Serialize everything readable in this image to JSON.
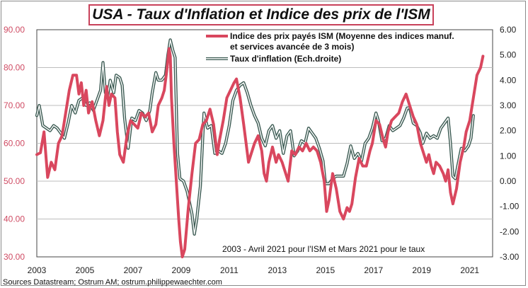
{
  "title": "USA - Taux d'Inflation et Indice des prix de l'ISM",
  "chart_data": {
    "type": "line",
    "title": "USA - Taux d'Inflation et Indice des prix de l'ISM",
    "x_range": [
      2003,
      2021.95
    ],
    "x_ticks": [
      "2003",
      "2005",
      "2007",
      "2009",
      "2011",
      "2013",
      "2015",
      "2017",
      "2019",
      "2021"
    ],
    "x_tick_values": [
      2003,
      2005,
      2007,
      2009,
      2011,
      2013,
      2015,
      2017,
      2019,
      2021
    ],
    "y_left": {
      "range": [
        30,
        90
      ],
      "ticks": [
        "30.00",
        "40.00",
        "50.00",
        "60.00",
        "70.00",
        "80.00",
        "90.00"
      ],
      "tick_values": [
        30,
        40,
        50,
        60,
        70,
        80,
        90
      ]
    },
    "y_right": {
      "range": [
        -3,
        6
      ],
      "ticks": [
        "-3.00",
        "-2.00",
        "-1.00",
        "0.00",
        "1.00",
        "2.00",
        "3.00",
        "4.00",
        "5.00",
        "6.00"
      ],
      "tick_values": [
        -3,
        -2,
        -1,
        0,
        1,
        2,
        3,
        4,
        5,
        6
      ]
    },
    "series": [
      {
        "name": "Indice des prix payés ISM (Moyenne des indices manuf. et services avancée de 3 mois)",
        "legend_lines": [
          "Indice des prix payés ISM (Moyenne des indices manuf.",
          "et services avancée de 3 mois)"
        ],
        "axis": "left",
        "color": "#d9475e",
        "points": [
          [
            2003.0,
            57
          ],
          [
            2003.15,
            57.5
          ],
          [
            2003.3,
            63
          ],
          [
            2003.45,
            51
          ],
          [
            2003.6,
            55
          ],
          [
            2003.75,
            53
          ],
          [
            2003.9,
            60
          ],
          [
            2004.05,
            62
          ],
          [
            2004.2,
            68
          ],
          [
            2004.35,
            74
          ],
          [
            2004.5,
            78
          ],
          [
            2004.65,
            78
          ],
          [
            2004.75,
            73
          ],
          [
            2004.85,
            76
          ],
          [
            2004.95,
            70
          ],
          [
            2005.05,
            74
          ],
          [
            2005.15,
            68
          ],
          [
            2005.3,
            71
          ],
          [
            2005.45,
            66
          ],
          [
            2005.6,
            62
          ],
          [
            2005.75,
            66
          ],
          [
            2005.9,
            75
          ],
          [
            2006.0,
            70
          ],
          [
            2006.1,
            73
          ],
          [
            2006.25,
            72
          ],
          [
            2006.35,
            63
          ],
          [
            2006.45,
            57
          ],
          [
            2006.6,
            55
          ],
          [
            2006.75,
            62
          ],
          [
            2006.9,
            66
          ],
          [
            2007.05,
            65
          ],
          [
            2007.2,
            64
          ],
          [
            2007.35,
            68
          ],
          [
            2007.5,
            67
          ],
          [
            2007.65,
            68
          ],
          [
            2007.8,
            63
          ],
          [
            2007.95,
            65
          ],
          [
            2008.05,
            70
          ],
          [
            2008.2,
            72
          ],
          [
            2008.3,
            74
          ],
          [
            2008.4,
            79
          ],
          [
            2008.5,
            85
          ],
          [
            2008.55,
            83
          ],
          [
            2008.6,
            72
          ],
          [
            2008.7,
            60
          ],
          [
            2008.8,
            50
          ],
          [
            2008.9,
            40
          ],
          [
            2008.97,
            34
          ],
          [
            2009.05,
            30
          ],
          [
            2009.15,
            32
          ],
          [
            2009.3,
            43
          ],
          [
            2009.45,
            52
          ],
          [
            2009.6,
            60
          ],
          [
            2009.75,
            61
          ],
          [
            2009.9,
            65
          ],
          [
            2010.05,
            66
          ],
          [
            2010.2,
            69
          ],
          [
            2010.35,
            65
          ],
          [
            2010.5,
            57
          ],
          [
            2010.6,
            61
          ],
          [
            2010.75,
            66
          ],
          [
            2010.9,
            72
          ],
          [
            2011.05,
            74
          ],
          [
            2011.2,
            76
          ],
          [
            2011.3,
            77
          ],
          [
            2011.45,
            72
          ],
          [
            2011.6,
            65
          ],
          [
            2011.7,
            60
          ],
          [
            2011.8,
            55
          ],
          [
            2011.9,
            57
          ],
          [
            2012.05,
            60
          ],
          [
            2012.2,
            62
          ],
          [
            2012.35,
            58
          ],
          [
            2012.45,
            52
          ],
          [
            2012.55,
            50
          ],
          [
            2012.65,
            55
          ],
          [
            2012.8,
            59
          ],
          [
            2012.95,
            55
          ],
          [
            2013.05,
            57
          ],
          [
            2013.2,
            55
          ],
          [
            2013.35,
            52
          ],
          [
            2013.45,
            50
          ],
          [
            2013.6,
            58
          ],
          [
            2013.75,
            57
          ],
          [
            2013.9,
            59
          ],
          [
            2014.05,
            58
          ],
          [
            2014.2,
            60
          ],
          [
            2014.35,
            58
          ],
          [
            2014.5,
            59
          ],
          [
            2014.65,
            58
          ],
          [
            2014.8,
            55
          ],
          [
            2014.95,
            50
          ],
          [
            2015.05,
            42
          ],
          [
            2015.15,
            45
          ],
          [
            2015.3,
            52
          ],
          [
            2015.45,
            48
          ],
          [
            2015.6,
            42
          ],
          [
            2015.75,
            40
          ],
          [
            2015.9,
            43
          ],
          [
            2016.0,
            42
          ],
          [
            2016.1,
            44
          ],
          [
            2016.25,
            51
          ],
          [
            2016.4,
            56
          ],
          [
            2016.55,
            54
          ],
          [
            2016.7,
            54
          ],
          [
            2016.85,
            58
          ],
          [
            2016.95,
            60
          ],
          [
            2017.1,
            66
          ],
          [
            2017.25,
            65
          ],
          [
            2017.4,
            61
          ],
          [
            2017.5,
            59
          ],
          [
            2017.6,
            63
          ],
          [
            2017.75,
            66
          ],
          [
            2017.9,
            67
          ],
          [
            2018.05,
            68
          ],
          [
            2018.2,
            71
          ],
          [
            2018.35,
            73
          ],
          [
            2018.5,
            70
          ],
          [
            2018.65,
            67
          ],
          [
            2018.8,
            65
          ],
          [
            2018.95,
            60
          ],
          [
            2019.05,
            58
          ],
          [
            2019.2,
            55
          ],
          [
            2019.3,
            57
          ],
          [
            2019.4,
            54
          ],
          [
            2019.5,
            52
          ],
          [
            2019.6,
            55
          ],
          [
            2019.75,
            54
          ],
          [
            2019.9,
            52
          ],
          [
            2020.0,
            50
          ],
          [
            2020.1,
            53
          ],
          [
            2020.2,
            47
          ],
          [
            2020.3,
            44
          ],
          [
            2020.45,
            48
          ],
          [
            2020.6,
            55
          ],
          [
            2020.75,
            59
          ],
          [
            2020.85,
            63
          ],
          [
            2021.0,
            66
          ],
          [
            2021.15,
            72
          ],
          [
            2021.3,
            78
          ],
          [
            2021.45,
            80
          ],
          [
            2021.55,
            83
          ]
        ]
      },
      {
        "name": "Taux d'inflation (Ech.droite)",
        "legend_lines": [
          "Taux d'inflation (Ech.droite)"
        ],
        "axis": "right",
        "color": "#3b5a52",
        "points": [
          [
            2003.0,
            2.6
          ],
          [
            2003.1,
            3.0
          ],
          [
            2003.25,
            2.2
          ],
          [
            2003.4,
            2.1
          ],
          [
            2003.55,
            2.0
          ],
          [
            2003.7,
            2.2
          ],
          [
            2003.85,
            2.1
          ],
          [
            2004.0,
            1.9
          ],
          [
            2004.15,
            1.7
          ],
          [
            2004.3,
            2.3
          ],
          [
            2004.45,
            3.0
          ],
          [
            2004.6,
            2.7
          ],
          [
            2004.75,
            3.2
          ],
          [
            2004.9,
            3.3
          ],
          [
            2005.05,
            3.0
          ],
          [
            2005.2,
            3.1
          ],
          [
            2005.35,
            2.8
          ],
          [
            2005.5,
            3.2
          ],
          [
            2005.65,
            3.6
          ],
          [
            2005.75,
            4.7
          ],
          [
            2005.85,
            3.5
          ],
          [
            2005.95,
            3.4
          ],
          [
            2006.05,
            4.0
          ],
          [
            2006.2,
            3.5
          ],
          [
            2006.3,
            4.2
          ],
          [
            2006.45,
            4.1
          ],
          [
            2006.55,
            3.8
          ],
          [
            2006.65,
            2.5
          ],
          [
            2006.8,
            1.3
          ],
          [
            2006.95,
            2.5
          ],
          [
            2007.1,
            2.4
          ],
          [
            2007.25,
            2.8
          ],
          [
            2007.4,
            2.7
          ],
          [
            2007.55,
            2.4
          ],
          [
            2007.7,
            2.8
          ],
          [
            2007.8,
            3.5
          ],
          [
            2007.95,
            4.3
          ],
          [
            2008.05,
            4.0
          ],
          [
            2008.2,
            4.0
          ],
          [
            2008.35,
            4.2
          ],
          [
            2008.45,
            5.0
          ],
          [
            2008.55,
            5.6
          ],
          [
            2008.65,
            5.2
          ],
          [
            2008.75,
            4.9
          ],
          [
            2008.85,
            1.1
          ],
          [
            2008.95,
            0.1
          ],
          [
            2009.1,
            0.0
          ],
          [
            2009.25,
            -0.4
          ],
          [
            2009.45,
            -1.3
          ],
          [
            2009.55,
            -2.1
          ],
          [
            2009.65,
            -1.5
          ],
          [
            2009.8,
            -0.2
          ],
          [
            2009.95,
            2.7
          ],
          [
            2010.1,
            2.1
          ],
          [
            2010.25,
            2.2
          ],
          [
            2010.4,
            1.1
          ],
          [
            2010.55,
            1.2
          ],
          [
            2010.7,
            1.1
          ],
          [
            2010.85,
            1.5
          ],
          [
            2011.0,
            2.2
          ],
          [
            2011.15,
            3.2
          ],
          [
            2011.3,
            3.6
          ],
          [
            2011.45,
            3.8
          ],
          [
            2011.6,
            3.9
          ],
          [
            2011.75,
            3.5
          ],
          [
            2011.9,
            3.0
          ],
          [
            2012.05,
            2.6
          ],
          [
            2012.2,
            2.3
          ],
          [
            2012.35,
            1.7
          ],
          [
            2012.5,
            1.4
          ],
          [
            2012.65,
            2.0
          ],
          [
            2012.8,
            2.2
          ],
          [
            2012.95,
            1.7
          ],
          [
            2013.1,
            2.0
          ],
          [
            2013.25,
            1.1
          ],
          [
            2013.4,
            1.8
          ],
          [
            2013.55,
            2.0
          ],
          [
            2013.7,
            1.0
          ],
          [
            2013.85,
            1.2
          ],
          [
            2014.0,
            1.6
          ],
          [
            2014.15,
            1.5
          ],
          [
            2014.3,
            2.1
          ],
          [
            2014.45,
            1.9
          ],
          [
            2014.6,
            1.7
          ],
          [
            2014.75,
            1.3
          ],
          [
            2014.9,
            0.8
          ],
          [
            2015.0,
            -0.1
          ],
          [
            2015.15,
            -0.1
          ],
          [
            2015.3,
            0.1
          ],
          [
            2015.45,
            0.2
          ],
          [
            2015.6,
            0.2
          ],
          [
            2015.75,
            0.2
          ],
          [
            2015.9,
            0.7
          ],
          [
            2016.05,
            1.4
          ],
          [
            2016.2,
            0.9
          ],
          [
            2016.35,
            1.1
          ],
          [
            2016.5,
            0.8
          ],
          [
            2016.65,
            1.5
          ],
          [
            2016.8,
            1.7
          ],
          [
            2016.95,
            2.1
          ],
          [
            2017.1,
            2.7
          ],
          [
            2017.2,
            2.4
          ],
          [
            2017.35,
            1.6
          ],
          [
            2017.5,
            1.7
          ],
          [
            2017.65,
            2.2
          ],
          [
            2017.8,
            2.0
          ],
          [
            2017.95,
            2.1
          ],
          [
            2018.1,
            2.2
          ],
          [
            2018.25,
            2.5
          ],
          [
            2018.4,
            2.9
          ],
          [
            2018.5,
            2.9
          ],
          [
            2018.65,
            2.3
          ],
          [
            2018.8,
            2.2
          ],
          [
            2018.95,
            1.9
          ],
          [
            2019.05,
            1.5
          ],
          [
            2019.2,
            1.9
          ],
          [
            2019.35,
            1.7
          ],
          [
            2019.5,
            1.8
          ],
          [
            2019.65,
            1.7
          ],
          [
            2019.8,
            2.1
          ],
          [
            2019.95,
            2.3
          ],
          [
            2020.1,
            2.5
          ],
          [
            2020.2,
            1.5
          ],
          [
            2020.3,
            0.2
          ],
          [
            2020.4,
            0.1
          ],
          [
            2020.5,
            0.6
          ],
          [
            2020.65,
            1.3
          ],
          [
            2020.8,
            1.2
          ],
          [
            2020.95,
            1.4
          ],
          [
            2021.05,
            1.7
          ],
          [
            2021.15,
            2.6
          ]
        ]
      }
    ],
    "annotation": "2003 - Avril 2021 pour l'ISM et Mars 2021 pour le taux"
  },
  "source": "Sources Datastream; Ostrum AM;  ostrum.philippewaechter.com"
}
